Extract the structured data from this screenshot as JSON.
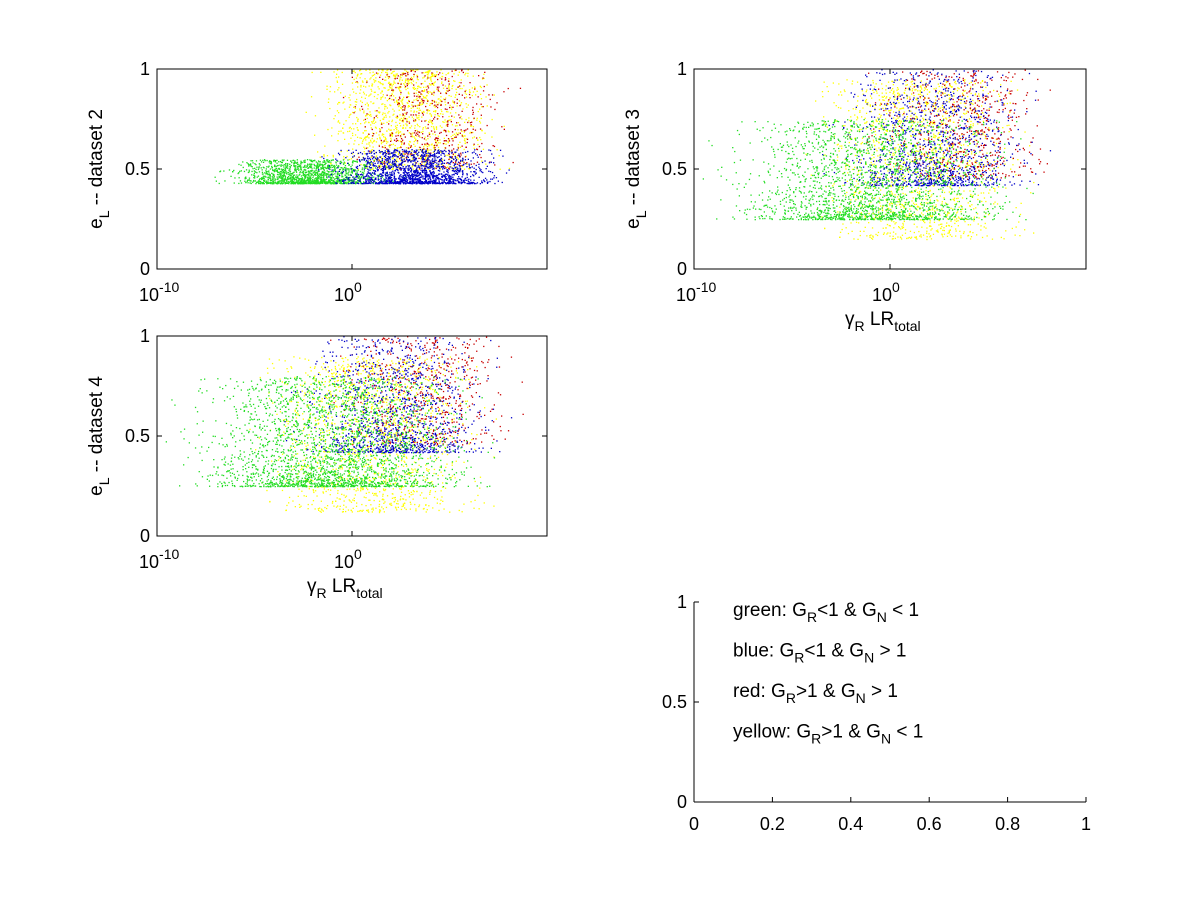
{
  "colors": {
    "green": "#22dd22",
    "blue": "#0000c8",
    "red": "#c80000",
    "yellow": "#ffff00",
    "axis": "#000000"
  },
  "chart_data": [
    {
      "type": "scatter",
      "panel": "dataset 2",
      "xscale": "log",
      "xlim": [
        "1e-10",
        "1e+10"
      ],
      "ylim": [
        0,
        1
      ],
      "ylabel": {
        "main": "e",
        "sub": "L",
        "rest": " -- dataset 2"
      },
      "xlabel": {
        "pre": "",
        "presub": "",
        "main": "",
        "sub": ""
      },
      "xticks": [
        {
          "base": "10",
          "exp": "-10"
        },
        {
          "base": "10",
          "exp": "0"
        }
      ],
      "yticks": [
        "0",
        "0.5",
        "1"
      ],
      "series": [
        {
          "color": "yellow",
          "count": 1300,
          "logx_range": [
            -3,
            8.5
          ],
          "y_range": [
            0.5,
            1.0
          ]
        },
        {
          "color": "red",
          "count": 450,
          "logx_range": [
            -1,
            9
          ],
          "y_range": [
            0.5,
            1.0
          ]
        },
        {
          "color": "green",
          "count": 1400,
          "logx_range": [
            -7.5,
            3
          ],
          "y_range": [
            0.43,
            0.55
          ]
        },
        {
          "color": "blue",
          "count": 1500,
          "logx_range": [
            -2,
            8.5
          ],
          "y_range": [
            0.43,
            0.6
          ]
        }
      ]
    },
    {
      "type": "scatter",
      "panel": "dataset 3",
      "xscale": "log",
      "xlim": [
        "1e-10",
        "1e+10"
      ],
      "ylim": [
        0,
        1
      ],
      "ylabel": {
        "main": "e",
        "sub": "L",
        "rest": " -- dataset 3"
      },
      "xlabel": {
        "pre": "γ",
        "presub": "R",
        "main": "LR",
        "sub": "total"
      },
      "xticks": [
        {
          "base": "10",
          "exp": "-10"
        },
        {
          "base": "10",
          "exp": "0"
        }
      ],
      "yticks": [
        "0",
        "0.5",
        "1"
      ],
      "series": [
        {
          "color": "yellow",
          "count": 1500,
          "logx_range": [
            -5,
            8
          ],
          "y_range": [
            0.15,
            0.95
          ]
        },
        {
          "color": "red",
          "count": 550,
          "logx_range": [
            -2,
            9.5
          ],
          "y_range": [
            0.45,
            1.0
          ]
        },
        {
          "color": "blue",
          "count": 1100,
          "logx_range": [
            -4,
            8.5
          ],
          "y_range": [
            0.42,
            1.0
          ]
        },
        {
          "color": "green",
          "count": 2000,
          "logx_range": [
            -10,
            8
          ],
          "y_range": [
            0.25,
            0.75
          ]
        }
      ]
    },
    {
      "type": "scatter",
      "panel": "dataset 4",
      "xscale": "log",
      "xlim": [
        "1e-10",
        "1e+10"
      ],
      "ylim": [
        0,
        1
      ],
      "ylabel": {
        "main": "e",
        "sub": "L",
        "rest": " -- dataset 4"
      },
      "xlabel": {
        "pre": "γ",
        "presub": "R",
        "main": "LR",
        "sub": "total"
      },
      "xticks": [
        {
          "base": "10",
          "exp": "-10"
        },
        {
          "base": "10",
          "exp": "0"
        }
      ],
      "yticks": [
        "0",
        "0.5",
        "1"
      ],
      "series": [
        {
          "color": "yellow",
          "count": 1500,
          "logx_range": [
            -6,
            8
          ],
          "y_range": [
            0.12,
            0.9
          ]
        },
        {
          "color": "red",
          "count": 550,
          "logx_range": [
            -2,
            9.5
          ],
          "y_range": [
            0.45,
            1.0
          ]
        },
        {
          "color": "blue",
          "count": 1100,
          "logx_range": [
            -4,
            8.5
          ],
          "y_range": [
            0.42,
            1.0
          ]
        },
        {
          "color": "green",
          "count": 2400,
          "logx_range": [
            -10,
            8
          ],
          "y_range": [
            0.25,
            0.8
          ]
        }
      ]
    },
    {
      "type": "scatter",
      "panel": "legend",
      "xlim": [
        0,
        1
      ],
      "ylim": [
        0,
        1
      ],
      "xticks": [
        "0",
        "0.2",
        "0.4",
        "0.6",
        "0.8",
        "1"
      ],
      "yticks": [
        "0",
        "0.5",
        "1"
      ],
      "legend": [
        {
          "name": "green:",
          "g1": "G",
          "s1": "R",
          "m1": "<1 & ",
          "g2": "G",
          "s2": "N",
          "m2": " < 1"
        },
        {
          "name": "blue:",
          "g1": "G",
          "s1": "R",
          "m1": "<1 & ",
          "g2": "G",
          "s2": "N",
          "m2": " > 1"
        },
        {
          "name": "red:",
          "g1": "G",
          "s1": "R",
          "m1": ">1 & ",
          "g2": "G",
          "s2": "N",
          "m2": " > 1"
        },
        {
          "name": "yellow:",
          "g1": "G",
          "s1": "R",
          "m1": ">1 & ",
          "g2": "G",
          "s2": "N",
          "m2": " < 1"
        }
      ]
    }
  ]
}
